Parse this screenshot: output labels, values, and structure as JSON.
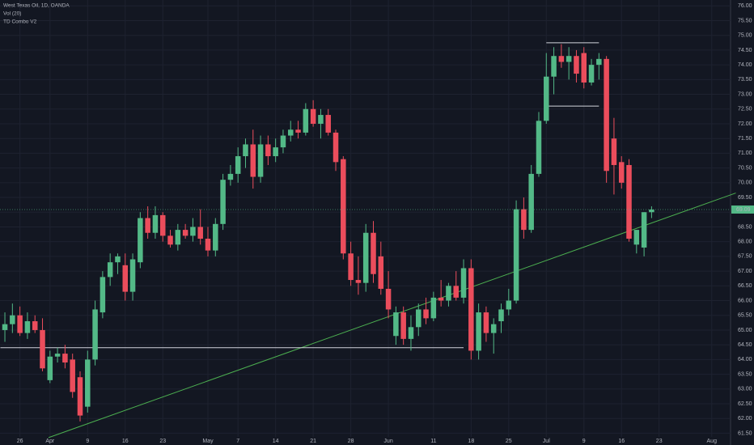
{
  "chart_data": {
    "type": "candlestick",
    "legend_texts": [
      "West Texas Oil, 1D, OANDA",
      "Vol (20)",
      "TD Combo V2"
    ],
    "up_color": "#53b987",
    "down_color": "#eb4d5c",
    "x": [
      0,
      1,
      2,
      3,
      4,
      5,
      6,
      7,
      8,
      9,
      10,
      11,
      12,
      13,
      14,
      15,
      16,
      17,
      18,
      19,
      20,
      21,
      22,
      23,
      24,
      25,
      26,
      27,
      28,
      29,
      30,
      31,
      32,
      33,
      34,
      35,
      36,
      37,
      38,
      39,
      40,
      41,
      42,
      43,
      44,
      45,
      46,
      47,
      48,
      49,
      50,
      51,
      52,
      53,
      54,
      55,
      56,
      57,
      58,
      59,
      60,
      61,
      62,
      63,
      64,
      65,
      66,
      67,
      68,
      69,
      70,
      71,
      72,
      73,
      74,
      75,
      76,
      77,
      78,
      79,
      80,
      81,
      82,
      83,
      84,
      85,
      86
    ],
    "open": [
      65.0,
      65.2,
      65.5,
      64.9,
      65.3,
      65.0,
      63.3,
      64.1,
      64.2,
      64.0,
      63.4,
      62.4,
      64.0,
      65.6,
      66.8,
      67.3,
      67.2,
      66.3,
      67.3,
      68.8,
      68.3,
      68.9,
      68.2,
      67.9,
      68.4,
      68.2,
      68.5,
      68.1,
      67.7,
      68.6,
      70.1,
      70.3,
      70.9,
      71.3,
      70.2,
      71.3,
      70.9,
      71.2,
      71.6,
      71.8,
      71.7,
      72.5,
      72.0,
      72.3,
      71.7,
      70.8,
      67.6,
      66.7,
      66.6,
      68.3,
      67.5,
      66.4,
      64.8,
      65.6,
      64.7,
      65.1,
      65.7,
      65.4,
      66.1,
      66.0,
      66.5,
      66.1,
      67.1,
      64.3,
      65.6,
      64.9,
      65.3,
      65.7,
      66.0,
      69.1,
      68.4,
      70.3,
      72.1,
      73.6,
      74.3,
      74.1,
      74.3,
      74.4,
      73.4,
      74.0,
      74.2,
      71.5,
      70.7,
      70.6,
      67.9,
      67.8,
      69.0
    ],
    "high": [
      65.6,
      65.9,
      65.8,
      65.6,
      65.5,
      65.4,
      64.3,
      64.4,
      64.5,
      64.2,
      63.6,
      64.3,
      66.0,
      67.0,
      67.6,
      67.6,
      67.6,
      67.6,
      69.0,
      69.2,
      69.2,
      69.0,
      68.4,
      68.6,
      68.6,
      68.8,
      69.1,
      68.5,
      68.8,
      70.3,
      70.6,
      71.2,
      71.5,
      71.8,
      71.6,
      71.6,
      71.5,
      71.8,
      72.1,
      72.1,
      72.7,
      72.8,
      72.5,
      72.5,
      71.8,
      70.9,
      68.0,
      67.5,
      68.6,
      68.7,
      68.0,
      67.0,
      65.8,
      65.8,
      65.5,
      65.9,
      66.1,
      66.3,
      66.7,
      66.6,
      67.0,
      67.4,
      67.4,
      65.9,
      65.8,
      65.4,
      65.9,
      66.4,
      69.4,
      69.5,
      70.6,
      72.4,
      74.4,
      74.6,
      74.7,
      74.6,
      74.5,
      74.6,
      74.2,
      74.4,
      74.3,
      72.2,
      70.9,
      70.8,
      68.4,
      69.0,
      69.2
    ],
    "low": [
      64.6,
      64.9,
      64.8,
      64.7,
      64.9,
      63.6,
      63.2,
      63.9,
      63.7,
      62.7,
      61.9,
      62.2,
      63.8,
      65.4,
      66.5,
      66.9,
      66.0,
      66.0,
      67.1,
      68.1,
      68.1,
      68.0,
      67.8,
      67.7,
      68.1,
      68.0,
      67.9,
      67.5,
      67.5,
      68.4,
      69.9,
      70.0,
      70.5,
      69.8,
      70.0,
      70.6,
      70.7,
      71.0,
      71.4,
      71.5,
      71.6,
      71.9,
      71.5,
      71.6,
      70.4,
      67.4,
      66.5,
      66.2,
      66.3,
      66.6,
      66.2,
      65.4,
      64.5,
      64.5,
      64.3,
      64.8,
      65.2,
      65.3,
      65.8,
      65.8,
      66.0,
      65.9,
      64.0,
      64.0,
      64.6,
      64.2,
      64.9,
      65.5,
      65.9,
      68.1,
      68.3,
      70.2,
      72.0,
      73.0,
      73.9,
      73.5,
      73.4,
      73.2,
      73.3,
      73.5,
      70.0,
      69.6,
      69.8,
      68.0,
      67.6,
      67.5,
      68.8
    ],
    "close": [
      65.2,
      65.5,
      64.9,
      65.3,
      65.0,
      63.7,
      64.1,
      64.2,
      63.9,
      62.9,
      62.1,
      64.0,
      65.7,
      66.8,
      67.3,
      67.5,
      66.3,
      67.4,
      68.8,
      68.3,
      68.9,
      68.2,
      67.9,
      68.4,
      68.2,
      68.5,
      68.1,
      67.7,
      68.6,
      70.1,
      70.3,
      70.9,
      71.3,
      70.2,
      71.3,
      70.9,
      71.2,
      71.6,
      71.8,
      71.7,
      72.5,
      72.0,
      72.3,
      71.7,
      70.7,
      67.6,
      66.7,
      66.6,
      68.3,
      66.9,
      66.4,
      65.7,
      65.6,
      64.7,
      65.1,
      65.7,
      65.4,
      66.1,
      66.0,
      66.5,
      66.1,
      67.1,
      64.3,
      65.6,
      64.9,
      65.2,
      65.7,
      66.0,
      69.1,
      68.4,
      70.3,
      72.1,
      73.6,
      74.3,
      74.1,
      74.3,
      73.7,
      73.4,
      74.0,
      74.2,
      70.4,
      70.6,
      70.0,
      68.1,
      68.4,
      69.0,
      69.09
    ],
    "last_price": 69.09,
    "last_price_color": "#53b987",
    "trendlines": [
      {
        "x": [
          5.8,
          97.2
        ],
        "y": [
          61.35,
          69.65
        ],
        "color": "#4caf50"
      },
      {
        "x": [
          -0.6,
          61
        ],
        "y": [
          64.4,
          64.4
        ],
        "color": "#d1d4dc"
      },
      {
        "x": [
          72,
          79
        ],
        "y": [
          74.75,
          74.75
        ],
        "color": "#d1d4dc"
      },
      {
        "x": [
          72,
          79
        ],
        "y": [
          72.6,
          72.6
        ],
        "color": "#d1d4dc"
      }
    ],
    "xlim": [
      -0.65,
      96.5
    ],
    "ylim": [
      61.1,
      76.2
    ],
    "xticks": [
      {
        "value": 2,
        "label": "26"
      },
      {
        "value": 6,
        "label": "Apr"
      },
      {
        "value": 11,
        "label": "9"
      },
      {
        "value": 16,
        "label": "16"
      },
      {
        "value": 21,
        "label": "23"
      },
      {
        "value": 27,
        "label": "May"
      },
      {
        "value": 31,
        "label": "7"
      },
      {
        "value": 36,
        "label": "14"
      },
      {
        "value": 41,
        "label": "21"
      },
      {
        "value": 46,
        "label": "28"
      },
      {
        "value": 51,
        "label": "Jun"
      },
      {
        "value": 57,
        "label": "11"
      },
      {
        "value": 62,
        "label": "18"
      },
      {
        "value": 67,
        "label": "25"
      },
      {
        "value": 72,
        "label": "Jul"
      },
      {
        "value": 77,
        "label": "9"
      },
      {
        "value": 82,
        "label": "16"
      },
      {
        "value": 87,
        "label": "23"
      },
      {
        "value": 94,
        "label": "Aug"
      }
    ],
    "yticks": [
      {
        "value": 61.5,
        "label": "61.50"
      },
      {
        "value": 62,
        "label": "62.00"
      },
      {
        "value": 62.5,
        "label": "62.50"
      },
      {
        "value": 63,
        "label": "63.00"
      },
      {
        "value": 63.5,
        "label": "63.50"
      },
      {
        "value": 64,
        "label": "64.00"
      },
      {
        "value": 64.5,
        "label": "64.50"
      },
      {
        "value": 65,
        "label": "65.00"
      },
      {
        "value": 65.5,
        "label": "65.50"
      },
      {
        "value": 66,
        "label": "66.00"
      },
      {
        "value": 66.5,
        "label": "66.50"
      },
      {
        "value": 67,
        "label": "67.00"
      },
      {
        "value": 67.5,
        "label": "67.50"
      },
      {
        "value": 68,
        "label": "68.00"
      },
      {
        "value": 68.5,
        "label": "68.50"
      },
      {
        "value": 69,
        "label": "69.00"
      },
      {
        "value": 69.5,
        "label": "69.50"
      },
      {
        "value": 70,
        "label": "70.00"
      },
      {
        "value": 70.5,
        "label": "70.50"
      },
      {
        "value": 71,
        "label": "71.00"
      },
      {
        "value": 71.5,
        "label": "71.50"
      },
      {
        "value": 72,
        "label": "72.00"
      },
      {
        "value": 72.5,
        "label": "72.50"
      },
      {
        "value": 73,
        "label": "73.00"
      },
      {
        "value": 73.5,
        "label": "73.50"
      },
      {
        "value": 74,
        "label": "74.00"
      },
      {
        "value": 74.5,
        "label": "74.50"
      },
      {
        "value": 75,
        "label": "75.00"
      },
      {
        "value": 75.5,
        "label": "75.50"
      },
      {
        "value": 76,
        "label": "76.00"
      }
    ],
    "grid": true
  }
}
